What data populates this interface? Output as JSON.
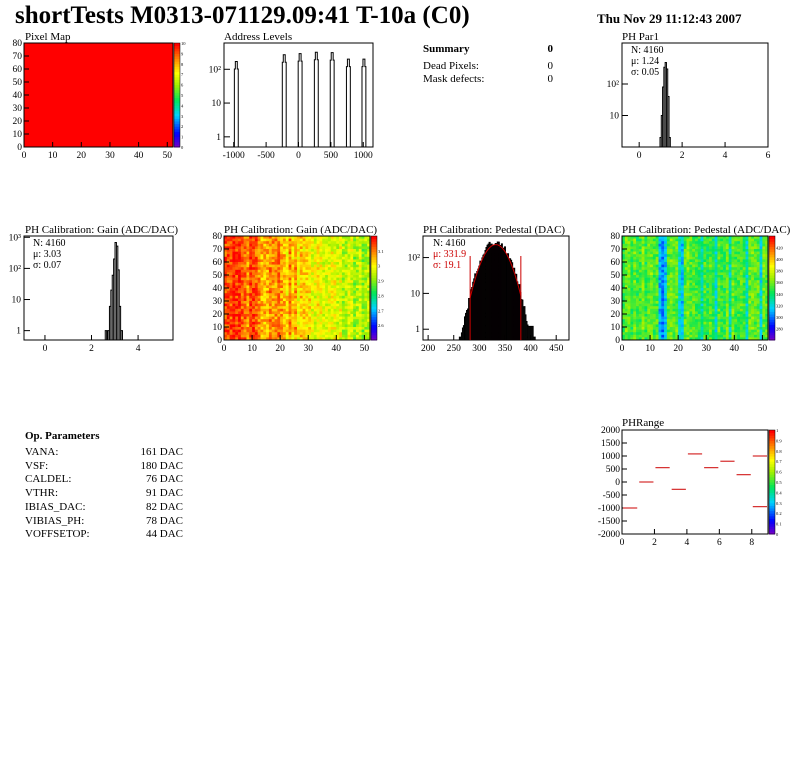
{
  "header": {
    "title": "shortTests M0313-071129.09:41 T-10a (C0)",
    "date": "Thu Nov 29 11:12:43 2007"
  },
  "summary": {
    "title": "Summary",
    "count": "0",
    "rows": [
      {
        "label": "Dead Pixels:",
        "value": "0"
      },
      {
        "label": "Mask defects:",
        "value": "0"
      }
    ]
  },
  "op_params": {
    "title": "Op. Parameters",
    "rows": [
      {
        "label": "VANA:",
        "value": "161 DAC"
      },
      {
        "label": "VSF:",
        "value": "180 DAC"
      },
      {
        "label": "CALDEL:",
        "value": "76 DAC"
      },
      {
        "label": "VTHR:",
        "value": "91 DAC"
      },
      {
        "label": "IBIAS_DAC:",
        "value": "82 DAC"
      },
      {
        "label": "VIBIAS_PH:",
        "value": "78 DAC"
      },
      {
        "label": "VOFFSETOP:",
        "value": "44 DAC"
      }
    ]
  },
  "colors": {
    "hist_line": "#000000",
    "fit_red": "#cc0000",
    "pixel_map_fill": "#ff0000"
  },
  "chart_data": [
    {
      "id": "pixel-map",
      "type": "heatmap",
      "title": "Pixel Map",
      "x_ticks": [
        "0",
        "10",
        "20",
        "30",
        "40",
        "50"
      ],
      "y_ticks": [
        "0",
        "10",
        "20",
        "30",
        "40",
        "50",
        "60",
        "70",
        "80"
      ],
      "xlim": [
        0,
        52
      ],
      "ylim": [
        0,
        80
      ],
      "uniform_value": 10,
      "zlim": [
        0,
        10
      ],
      "z_ticks": [
        "0",
        "1",
        "2",
        "3",
        "4",
        "5",
        "6",
        "7",
        "8",
        "9",
        "10"
      ]
    },
    {
      "id": "address-levels",
      "type": "bar",
      "title": "Address Levels",
      "x_ticks": [
        "-1000",
        "-500",
        "0",
        "500",
        "1000"
      ],
      "y_ticks": [
        "1",
        "10",
        "10²"
      ],
      "xlim": [
        -1150,
        1150
      ],
      "ylog": true,
      "ylim": [
        0.5,
        600
      ],
      "peaks": [
        {
          "center": -960,
          "height": 170
        },
        {
          "center": -220,
          "height": 270
        },
        {
          "center": 25,
          "height": 290
        },
        {
          "center": 275,
          "height": 320
        },
        {
          "center": 520,
          "height": 310
        },
        {
          "center": 770,
          "height": 200
        },
        {
          "center": 1010,
          "height": 200
        }
      ]
    },
    {
      "id": "ph-par1",
      "type": "bar",
      "title": "PH Par1",
      "x_ticks": [
        "0",
        "2",
        "4",
        "6"
      ],
      "y_ticks": [
        "10",
        "10²"
      ],
      "xlim": [
        -0.8,
        6
      ],
      "ylog": true,
      "ylim": [
        1,
        2000
      ],
      "stats": {
        "n": "N: 4160",
        "mu": "μ: 1.24",
        "sigma": "σ: 0.05"
      },
      "bins": [
        [
          1.0,
          2
        ],
        [
          1.06,
          10
        ],
        [
          1.12,
          80
        ],
        [
          1.18,
          340
        ],
        [
          1.24,
          480
        ],
        [
          1.3,
          300
        ],
        [
          1.36,
          40
        ],
        [
          1.42,
          2
        ]
      ]
    },
    {
      "id": "ph-gain",
      "type": "bar",
      "title": "PH Calibration: Gain (ADC/DAC)",
      "x_ticks": [
        "0",
        "2",
        "4"
      ],
      "y_ticks": [
        "1",
        "10",
        "10²",
        "10³"
      ],
      "xlim": [
        -0.9,
        5.5
      ],
      "ylog": true,
      "ylim": [
        0.5,
        1100
      ],
      "stats": {
        "n": "N: 4160",
        "mu": "μ: 3.03",
        "sigma": "σ: 0.07"
      },
      "bins": [
        [
          2.62,
          1
        ],
        [
          2.72,
          1
        ],
        [
          2.8,
          6
        ],
        [
          2.86,
          20
        ],
        [
          2.92,
          60
        ],
        [
          2.98,
          200
        ],
        [
          3.04,
          680
        ],
        [
          3.1,
          520
        ],
        [
          3.16,
          90
        ],
        [
          3.22,
          6
        ],
        [
          3.3,
          1
        ]
      ]
    },
    {
      "id": "ph-gain-map",
      "type": "heatmap",
      "title": "PH Calibration: Gain (ADC/DAC)",
      "x_ticks": [
        "0",
        "10",
        "20",
        "30",
        "40",
        "50"
      ],
      "y_ticks": [
        "0",
        "10",
        "20",
        "30",
        "40",
        "50",
        "60",
        "70",
        "80"
      ],
      "xlim": [
        0,
        52
      ],
      "ylim": [
        0,
        80
      ],
      "zlim": [
        2.55,
        3.15
      ],
      "z_ticks": [
        "2.6",
        "2.7",
        "2.8",
        "2.9",
        "3",
        "3.1"
      ]
    },
    {
      "id": "ph-pedestal",
      "type": "bar",
      "title": "PH Calibration: Pedestal (DAC)",
      "x_ticks": [
        "200",
        "250",
        "300",
        "350",
        "400",
        "450"
      ],
      "y_ticks": [
        "1",
        "10",
        "10²"
      ],
      "xlim": [
        190,
        475
      ],
      "ylog": true,
      "ylim": [
        0.5,
        400
      ],
      "stats": {
        "n": "N: 4160",
        "mu": "μ: 331.9",
        "sigma": "σ: 19.1"
      },
      "fit_range": [
        282,
        381
      ]
    },
    {
      "id": "ph-pedestal-map",
      "type": "heatmap",
      "title": "PH Calibration: Pedestal (ADC/DAC)",
      "x_ticks": [
        "0",
        "10",
        "20",
        "30",
        "40",
        "50"
      ],
      "y_ticks": [
        "0",
        "10",
        "20",
        "30",
        "40",
        "50",
        "60",
        "70",
        "80"
      ],
      "xlim": [
        0,
        52
      ],
      "ylim": [
        0,
        80
      ],
      "zlim": [
        270,
        420
      ],
      "z_ticks": [
        "280",
        "300",
        "320",
        "340",
        "360",
        "380",
        "400",
        "420"
      ]
    },
    {
      "id": "ph-range",
      "type": "scatter",
      "title": "PHRange",
      "x_ticks": [
        "0",
        "2",
        "4",
        "6",
        "8"
      ],
      "y_ticks": [
        "-2000",
        "-1500",
        "-1000",
        "-500",
        "0",
        "500",
        "1000",
        "1500",
        "2000"
      ],
      "xlim": [
        0,
        9
      ],
      "ylim": [
        -2000,
        2000
      ],
      "z_ticks": [
        "0",
        "0.1",
        "0.2",
        "0.3",
        "0.4",
        "0.5",
        "0.6",
        "0.7",
        "0.8",
        "0.9",
        "1"
      ],
      "segments": [
        {
          "x0": 0,
          "x1": 1,
          "y": -1000
        },
        {
          "x0": 1,
          "x1": 2,
          "y": 0
        },
        {
          "x0": 2,
          "x1": 3,
          "y": 550
        },
        {
          "x0": 3,
          "x1": 4,
          "y": -280
        },
        {
          "x0": 4,
          "x1": 5,
          "y": 1080
        },
        {
          "x0": 5,
          "x1": 6,
          "y": 550
        },
        {
          "x0": 6,
          "x1": 7,
          "y": 800
        },
        {
          "x0": 7,
          "x1": 8,
          "y": 280
        },
        {
          "x0": 8,
          "x1": 9,
          "y": 1000
        }
      ],
      "tail": {
        "x0": 8,
        "x1": 9,
        "y": -950
      }
    }
  ]
}
